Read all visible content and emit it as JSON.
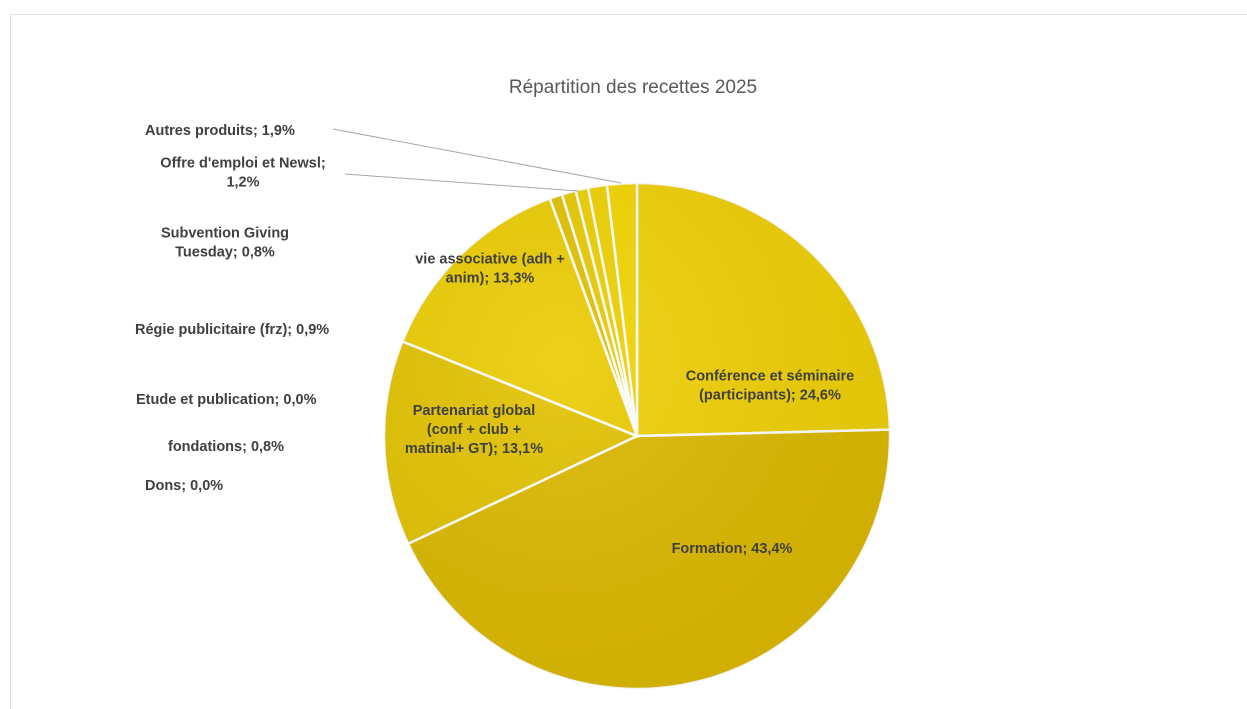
{
  "chart_data": {
    "type": "pie",
    "title": "Répartition des recettes 2025",
    "slices": [
      {
        "label_lines": [
          "Conférence et séminaire",
          "(participants); 24,6%"
        ],
        "value": 24.6,
        "color": "#efcf05"
      },
      {
        "label_lines": [
          "Formation; 43,4%"
        ],
        "value": 43.4,
        "color": "#dcb800"
      },
      {
        "label_lines": [
          "Partenariat global",
          "(conf + club +",
          "matinal+ GT); 13,1%"
        ],
        "value": 13.1,
        "color": "#e2c200"
      },
      {
        "label_lines": [
          "vie associative (adh +",
          "anim); 13,3%"
        ],
        "value": 13.3,
        "color": "#ebcb02"
      },
      {
        "label_lines": [
          "Dons; 0,0%"
        ],
        "value": 0.0,
        "color": "#d8b400"
      },
      {
        "label_lines": [
          "fondations; 0,8%"
        ],
        "value": 0.8,
        "color": "#e0c000"
      },
      {
        "label_lines": [
          "Etude et publication; 0,0%"
        ],
        "value": 0.0,
        "color": "#e6c600"
      },
      {
        "label_lines": [
          "Régie publicitaire (frz); 0,9%"
        ],
        "value": 0.9,
        "color": "#e8c900"
      },
      {
        "label_lines": [
          "Subvention Giving",
          "Tuesday; 0,8%"
        ],
        "value": 0.8,
        "color": "#ecce00"
      },
      {
        "label_lines": [
          "Offre d'emploi et Newsl;",
          "1,2%"
        ],
        "value": 1.2,
        "color": "#efd000"
      },
      {
        "label_lines": [
          "Autres produits; 1,9%"
        ],
        "value": 1.9,
        "color": "#f2d400"
      }
    ],
    "legend": "none",
    "data_labels": "category; percentage"
  }
}
